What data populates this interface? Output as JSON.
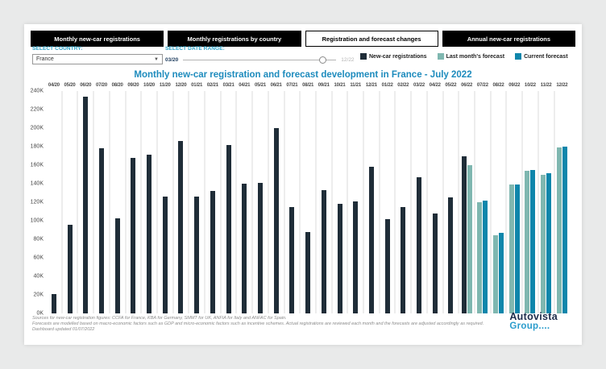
{
  "tabs": [
    {
      "label": "Monthly new-car registrations",
      "selected": false
    },
    {
      "label": "Monthly registrations by country",
      "selected": false
    },
    {
      "label": "Registration and forecast changes",
      "selected": true
    },
    {
      "label": "Annual new-car registrations",
      "selected": false
    }
  ],
  "controls": {
    "country_label": "SELECT COUNTRY:",
    "country_value": "France",
    "date_label": "SELECT DATE RANGE:",
    "date_start": "03/20",
    "date_end": "12/22"
  },
  "title": "Monthly new-car registration and forecast development in France - July 2022",
  "chart_data": {
    "type": "bar",
    "title": "Monthly new-car registration and forecast development in France - July 2022",
    "unit": "registrations (thousands)",
    "ymax_k": 240,
    "ylabels_top_to_bottom": [
      "240K",
      "220K",
      "200K",
      "180K",
      "160K",
      "140K",
      "120K",
      "100K",
      "80K",
      "60K",
      "40K",
      "20K",
      "0K"
    ],
    "legend_position": "top-right",
    "series": [
      {
        "key": "actual",
        "name": "New-car registrations",
        "color": "#1f2d38"
      },
      {
        "key": "last_forecast",
        "name": "Last month's forecast",
        "color": "#7fb7b0"
      },
      {
        "key": "current_forecast",
        "name": "Current forecast",
        "color": "#0e86ab"
      }
    ],
    "months": [
      {
        "label": "04/20",
        "actual": 21
      },
      {
        "label": "05/20",
        "actual": 96
      },
      {
        "label": "06/20",
        "actual": 234
      },
      {
        "label": "07/20",
        "actual": 178
      },
      {
        "label": "08/20",
        "actual": 103
      },
      {
        "label": "09/20",
        "actual": 168
      },
      {
        "label": "10/20",
        "actual": 171
      },
      {
        "label": "11/20",
        "actual": 126
      },
      {
        "label": "12/20",
        "actual": 186
      },
      {
        "label": "01/21",
        "actual": 126
      },
      {
        "label": "02/21",
        "actual": 132
      },
      {
        "label": "03/21",
        "actual": 182
      },
      {
        "label": "04/21",
        "actual": 140
      },
      {
        "label": "05/21",
        "actual": 141
      },
      {
        "label": "06/21",
        "actual": 200
      },
      {
        "label": "07/21",
        "actual": 115
      },
      {
        "label": "08/21",
        "actual": 88
      },
      {
        "label": "09/21",
        "actual": 133
      },
      {
        "label": "10/21",
        "actual": 118
      },
      {
        "label": "11/21",
        "actual": 121
      },
      {
        "label": "12/21",
        "actual": 158
      },
      {
        "label": "01/22",
        "actual": 102
      },
      {
        "label": "02/22",
        "actual": 115
      },
      {
        "label": "03/22",
        "actual": 147
      },
      {
        "label": "04/22",
        "actual": 108
      },
      {
        "label": "05/22",
        "actual": 125
      },
      {
        "label": "06/22",
        "actual": 170,
        "last_forecast": 160
      },
      {
        "label": "07/22",
        "last_forecast": 120,
        "current_forecast": 122
      },
      {
        "label": "08/22",
        "last_forecast": 84,
        "current_forecast": 87
      },
      {
        "label": "09/22",
        "last_forecast": 139,
        "current_forecast": 139
      },
      {
        "label": "10/22",
        "last_forecast": 154,
        "current_forecast": 155
      },
      {
        "label": "11/22",
        "last_forecast": 150,
        "current_forecast": 151
      },
      {
        "label": "12/22",
        "last_forecast": 179,
        "current_forecast": 180
      }
    ]
  },
  "footer": {
    "lines": [
      "Sources for new-car registration figures: CCFA for France, KBA for Germany, SMMT for UK, ANFIA for Italy and ANFAC for Spain.",
      "Forecasts are modelled based on macro-economic factors such as GDP and micro-economic factors such as incentive schemes. Actual registrations are reviewed each month and the forecasts are adjusted accordingly as required.",
      "Dashboard updated 01/07/2022"
    ]
  },
  "logo": {
    "line1": "Autovista",
    "line2": "Group...."
  }
}
